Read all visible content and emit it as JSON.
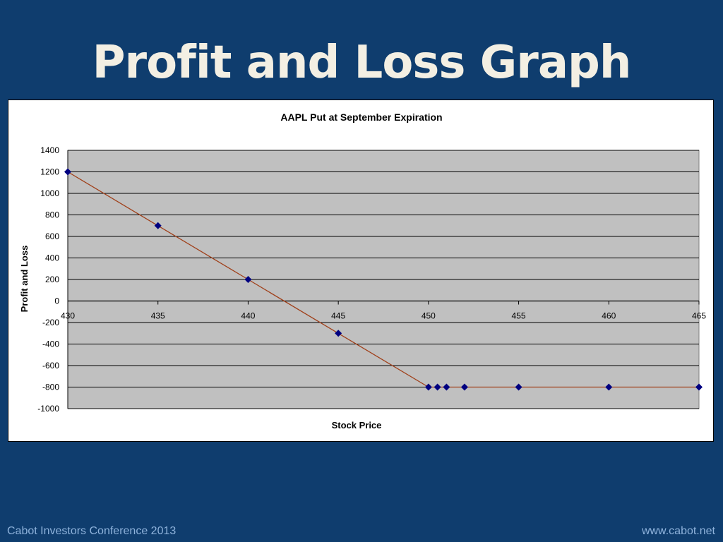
{
  "slide": {
    "title": "Profit and Loss Graph",
    "footer_left": "Cabot Investors Conference 2013",
    "footer_right": "www.cabot.net"
  },
  "colors": {
    "background": "#0f3d6e",
    "title": "#f3efe3",
    "footer": "#8fb3dc",
    "plot_area": "#c0c0c0",
    "line": "#a0401a",
    "marker": "#000080"
  },
  "chart_data": {
    "type": "line",
    "title": "AAPL Put at September Expiration",
    "xlabel": "Stock Price",
    "ylabel": "Profit and Loss",
    "xlim": [
      430,
      465
    ],
    "ylim": [
      -1000,
      1400
    ],
    "x_ticks": [
      430,
      435,
      440,
      445,
      450,
      455,
      460,
      465
    ],
    "y_ticks": [
      1400,
      1200,
      1000,
      800,
      600,
      400,
      200,
      0,
      -200,
      -400,
      -600,
      -800,
      -1000
    ],
    "grid": true,
    "legend": "none",
    "series": [
      {
        "points": [
          [
            430,
            1200
          ],
          [
            435,
            700
          ],
          [
            440,
            200
          ],
          [
            445,
            -300
          ],
          [
            450,
            -800
          ],
          [
            450.5,
            -800
          ],
          [
            451,
            -800
          ],
          [
            452,
            -800
          ],
          [
            455,
            -800
          ],
          [
            460,
            -800
          ],
          [
            465,
            -800
          ]
        ]
      }
    ]
  }
}
